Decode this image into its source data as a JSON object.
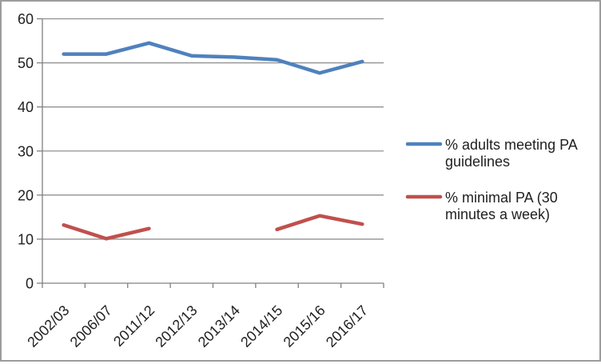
{
  "chart_data": {
    "type": "line",
    "title": "",
    "xlabel": "",
    "ylabel": "",
    "categories": [
      "2002/03",
      "2006/07",
      "2011/12",
      "2012/13",
      "2013/14",
      "2014/15",
      "2015/16",
      "2016/17"
    ],
    "series": [
      {
        "name": "% adults meeting PA guidelines",
        "legend_lines": [
          "% adults meeting PA",
          "guidelines"
        ],
        "color": "#4F81BD",
        "values": [
          52,
          52,
          54.5,
          51.6,
          51.3,
          50.7,
          47.7,
          50.3
        ]
      },
      {
        "name": "% minimal PA (30 minutes a week)",
        "legend_lines": [
          "% minimal PA (30",
          "minutes a week)"
        ],
        "color": "#C0504D",
        "values": [
          13.2,
          10.1,
          12.4,
          null,
          null,
          12.2,
          15.3,
          13.4
        ]
      }
    ],
    "ylim": [
      0,
      60
    ],
    "yticks": [
      0,
      10,
      20,
      30,
      40,
      50,
      60
    ],
    "grid": true,
    "legend_position": "right",
    "styles": {
      "grid_color": "#919191",
      "axis_color": "#808080",
      "text_color": "#1f1f1f",
      "background": "#ffffff",
      "border_color": "#9c9c9c"
    }
  }
}
